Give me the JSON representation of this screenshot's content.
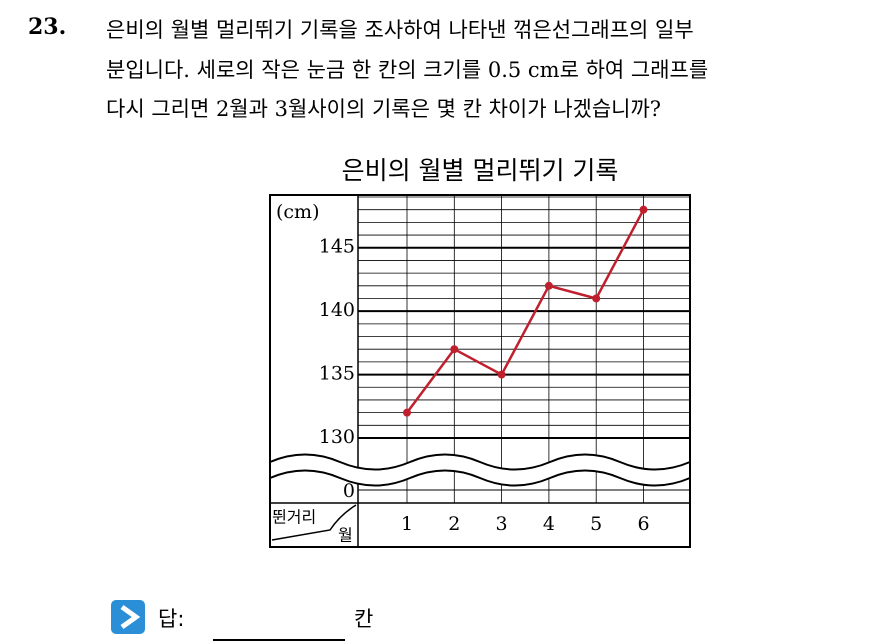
{
  "question": {
    "number": "23.",
    "lines": [
      "은비의 월별 멀리뛰기 기록을 조사하여 나타낸 꺾은선그래프의 일부",
      "분입니다. 세로의 작은 눈금 한 칸의 크기를 0.5 cm로 하여 그래프를",
      "다시 그리면 2월과 3월사이의 기록은 몇 칸 차이가 나겠습니까?"
    ]
  },
  "chart": {
    "type": "line",
    "title": "은비의 월별 멀리뛰기 기록",
    "y_label": "(cm)",
    "corner_row_label": "뛴거리",
    "corner_col_label": "월",
    "categories": [
      "1",
      "2",
      "3",
      "4",
      "5",
      "6"
    ],
    "values": [
      132,
      137,
      135,
      142,
      141,
      148
    ],
    "color": "#c0202e",
    "ylim": [
      130,
      149
    ],
    "yticks": [
      130,
      135,
      140,
      145
    ],
    "minor_step": 1,
    "break_tick": 0,
    "grid": true
  },
  "answer": {
    "label": "답:",
    "unit": "칸"
  }
}
